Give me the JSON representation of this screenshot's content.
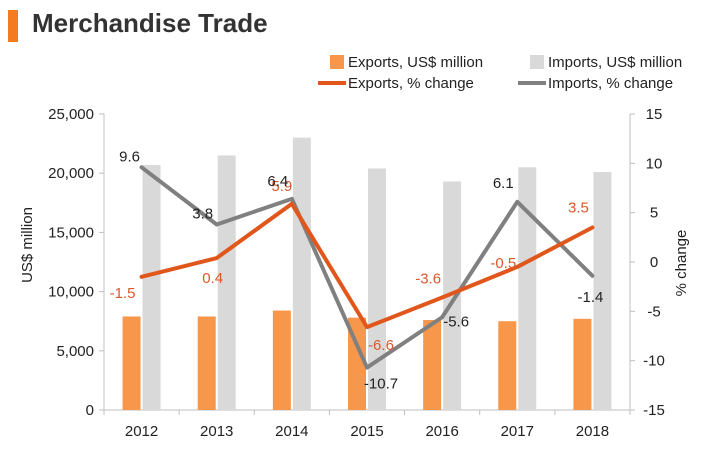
{
  "header": {
    "title": "Merchandise Trade"
  },
  "colors": {
    "accent": "#F47B20",
    "exports_bar": "#F6974B",
    "imports_bar": "#D9D9D9",
    "exports_line": "#E0561B",
    "imports_line": "#808080",
    "export_label": "#D8582A",
    "import_label": "#222222",
    "axis": "#BFBFBF"
  },
  "chart_data": {
    "type": "bar",
    "categories": [
      "2012",
      "2013",
      "2014",
      "2015",
      "2016",
      "2017",
      "2018"
    ],
    "series": [
      {
        "name": "Exports, US$ million",
        "type": "bar",
        "axis": "left",
        "values": [
          7900,
          7900,
          8400,
          7800,
          7600,
          7500,
          7700
        ]
      },
      {
        "name": "Imports, US$ million",
        "type": "bar",
        "axis": "left",
        "values": [
          20700,
          21500,
          23000,
          20400,
          19300,
          20500,
          20100
        ]
      },
      {
        "name": "Exports, % change",
        "type": "line",
        "axis": "right",
        "values": [
          -1.5,
          0.4,
          5.9,
          -6.6,
          -3.6,
          -0.5,
          3.5
        ],
        "labels": [
          "-1.5",
          "0.4",
          "5.9",
          "-6.6",
          "-3.6",
          "-0.5",
          "3.5"
        ]
      },
      {
        "name": "Imports, % change",
        "type": "line",
        "axis": "right",
        "values": [
          9.6,
          3.8,
          6.4,
          -10.7,
          -5.6,
          6.1,
          -1.4
        ],
        "labels": [
          "9.6",
          "3.8",
          "6.4",
          "-10.7",
          "-5.6",
          "6.1",
          "-1.4"
        ]
      }
    ],
    "ylabel": "US$ million",
    "y2label": "% change",
    "ylim": [
      0,
      25000
    ],
    "y2lim": [
      -15,
      15
    ],
    "yticks": [
      "0",
      "5,000",
      "10,000",
      "15,000",
      "20,000",
      "25,000"
    ],
    "y2ticks": [
      "-15",
      "-10",
      "-5",
      "0",
      "5",
      "10",
      "15"
    ],
    "grid": false,
    "legend_position": "top-right"
  }
}
